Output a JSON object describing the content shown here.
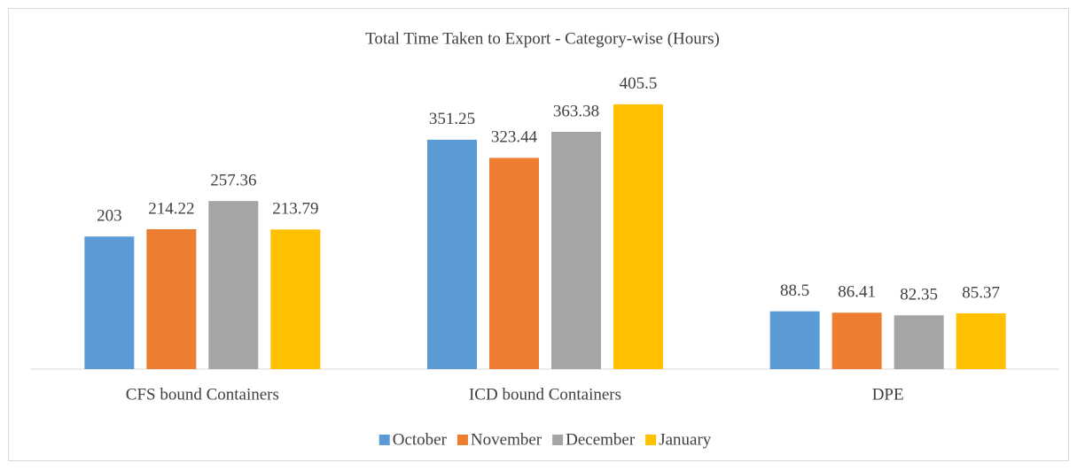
{
  "chart_data": {
    "type": "bar",
    "title": "Total Time Taken to Export - Category-wise (Hours)",
    "categories": [
      "CFS bound Containers",
      "ICD bound Containers",
      "DPE"
    ],
    "series": [
      {
        "name": "October",
        "color": "#5b9bd5",
        "values": [
          203,
          351.25,
          88.5
        ]
      },
      {
        "name": "November",
        "color": "#ed7d31",
        "values": [
          214.22,
          323.44,
          86.41
        ]
      },
      {
        "name": "December",
        "color": "#a5a5a5",
        "values": [
          257.36,
          363.38,
          82.35
        ]
      },
      {
        "name": "January",
        "color": "#ffc000",
        "values": [
          213.79,
          405.5,
          85.37
        ]
      }
    ],
    "ylim": [
      0,
      450
    ],
    "legend": "bottom"
  }
}
